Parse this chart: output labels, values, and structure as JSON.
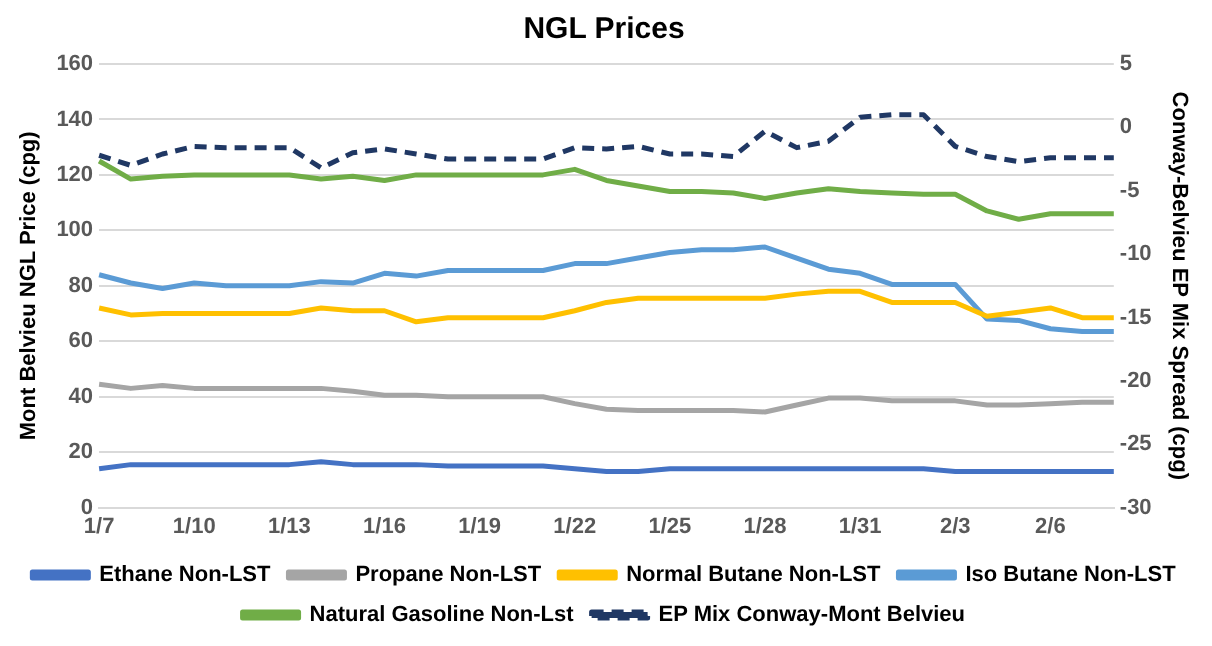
{
  "chart_data": {
    "type": "line",
    "title": "NGL Prices",
    "ylabel": "Mont Belvieu NGL Price (cpg)",
    "y2label": "Conway-Belvieu EP Mix Spread (cpg)",
    "categories": [
      "1/7",
      null,
      null,
      "1/10",
      null,
      null,
      "1/13",
      null,
      null,
      "1/16",
      null,
      null,
      "1/19",
      null,
      null,
      "1/22",
      null,
      null,
      "1/25",
      null,
      null,
      "1/28",
      null,
      null,
      "1/31",
      null,
      null,
      "2/3",
      null,
      null,
      "2/6",
      null,
      null
    ],
    "series": [
      {
        "name": "Ethane Non-LST",
        "color": "#4472c4",
        "values": [
          14,
          15.5,
          15.5,
          15.5,
          15.5,
          15.5,
          15.5,
          16.5,
          15.5,
          15.5,
          15.5,
          15,
          15,
          15,
          15,
          14,
          13,
          13,
          14,
          14,
          14,
          14,
          14,
          14,
          14,
          14,
          14,
          13,
          13,
          13,
          13,
          13,
          13
        ]
      },
      {
        "name": "Propane Non-LST",
        "color": "#a5a5a5",
        "values": [
          44.5,
          43,
          44,
          43,
          43,
          43,
          43,
          43,
          42,
          40.5,
          40.5,
          40,
          40,
          40,
          40,
          37.5,
          35.5,
          35,
          35,
          35,
          35,
          34.5,
          37,
          39.5,
          39.5,
          38.5,
          38.5,
          38.5,
          37,
          37,
          37.5,
          38,
          38
        ]
      },
      {
        "name": "Normal Butane Non-LST",
        "color": "#ffc000",
        "values": [
          72,
          69.5,
          70,
          70,
          70,
          70,
          70,
          72,
          71,
          71,
          67,
          68.5,
          68.5,
          68.5,
          68.5,
          71,
          74,
          75.5,
          75.5,
          75.5,
          75.5,
          75.5,
          77,
          78,
          78,
          74,
          74,
          74,
          69,
          70.5,
          72,
          68.5,
          68.5
        ]
      },
      {
        "name": "Iso Butane Non-LST",
        "color": "#5b9bd5",
        "values": [
          84,
          81,
          79,
          81,
          80,
          80,
          80,
          81.5,
          81,
          84.5,
          83.5,
          85.5,
          85.5,
          85.5,
          85.5,
          88,
          88,
          90,
          92,
          93,
          93,
          94,
          90,
          86,
          84.5,
          80.5,
          80.5,
          80.5,
          68,
          67.5,
          64.5,
          63.5,
          63.5
        ]
      },
      {
        "name": "Natural Gasoline Non-Lst",
        "color": "#70ad47",
        "values": [
          125,
          118.5,
          119.5,
          120,
          120,
          120,
          120,
          118.5,
          119.5,
          118,
          120,
          120,
          120,
          120,
          120,
          122,
          118,
          116,
          114,
          114,
          113.5,
          111.5,
          113.5,
          115,
          114,
          113.5,
          113,
          113,
          107,
          104,
          106,
          106,
          106
        ]
      },
      {
        "name": "EP Mix Conway-Mont Belvieu",
        "color": "#203864",
        "axis": "y2",
        "line_style": "dashed",
        "values": [
          -2.2,
          -3,
          -2.1,
          -1.5,
          -1.6,
          -1.6,
          -1.6,
          -3.2,
          -2,
          -1.7,
          -2.1,
          -2.5,
          -2.5,
          -2.5,
          -2.5,
          -1.6,
          -1.7,
          -1.5,
          -2.1,
          -2.1,
          -2.3,
          -0.3,
          -1.6,
          -1.1,
          0.8,
          1,
          1,
          -1.5,
          -2.3,
          -2.7,
          -2.4,
          -2.4,
          -2.4
        ]
      }
    ],
    "ylim": [
      0,
      160
    ],
    "yticks": [
      0,
      20,
      40,
      60,
      80,
      100,
      120,
      140,
      160
    ],
    "y2lim": [
      -30,
      5
    ],
    "y2ticks": [
      -30,
      -25,
      -20,
      -15,
      -10,
      -5,
      0,
      5
    ],
    "grid": "y",
    "legend": "bottom",
    "marker": "none"
  }
}
